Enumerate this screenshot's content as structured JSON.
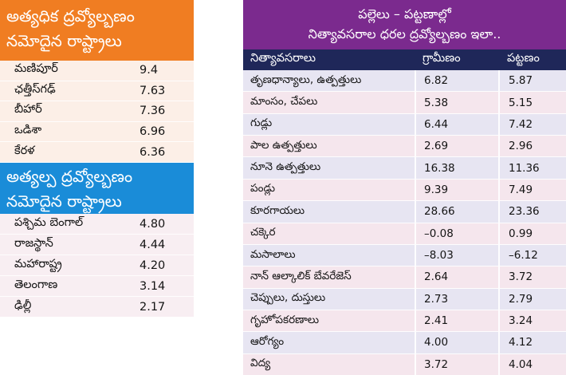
{
  "colors": {
    "high_header": "#f07d22",
    "low_header": "#1a8cd8",
    "compare_header": "#7b2a8e",
    "column_header": "#1f2759"
  },
  "chart_data": [
    {
      "type": "table",
      "title_lines": [
        "అత్యధిక ద్రవ్యోల్బణం",
        "నమోదైన రాష్ట్రాలు"
      ],
      "rows": [
        {
          "state": "మణిపూర్",
          "value": "9.4"
        },
        {
          "state": "ఛత్తీస్‌గఢ్",
          "value": "7.63"
        },
        {
          "state": "బీహార్",
          "value": "7.36"
        },
        {
          "state": "ఒడిశా",
          "value": "6.96"
        },
        {
          "state": "కేరళ",
          "value": "6.36"
        }
      ]
    },
    {
      "type": "table",
      "title_lines": [
        "అత్యల్ప ద్రవ్యోల్బణం",
        "నమోదైన రాష్ట్రాలు"
      ],
      "rows": [
        {
          "state": "పశ్చిమ బెంగాల్",
          "value": "4.80"
        },
        {
          "state": "రాజస్థాన్",
          "value": "4.44"
        },
        {
          "state": "మహారాష్ట్ర",
          "value": "4.20"
        },
        {
          "state": "తెలంగాణ",
          "value": "3.14"
        },
        {
          "state": "ఢిల్లీ",
          "value": "2.17"
        }
      ]
    },
    {
      "type": "table",
      "title_lines": [
        "పల్లెలు – పట్టణాల్లో",
        "నిత్యావసరాల ధరల ద్రవ్యోల్బణం ఇలా.."
      ],
      "columns": [
        "నిత్యావసరాలు",
        "గ్రామీణం",
        "పట్టణం"
      ],
      "rows": [
        {
          "item": "తృణధాన్యాలు, ఉత్పత్తులు",
          "rural": "6.82",
          "urban": "5.87"
        },
        {
          "item": "మాంసం, చేపలు",
          "rural": "5.38",
          "urban": "5.15"
        },
        {
          "item": "గుడ్లు",
          "rural": "6.44",
          "urban": "7.42"
        },
        {
          "item": "పాల ఉత్పత్తులు",
          "rural": "2.69",
          "urban": "2.96"
        },
        {
          "item": "నూనె ఉత్పత్తులు",
          "rural": "16.38",
          "urban": "11.36"
        },
        {
          "item": "పండ్లు",
          "rural": "9.39",
          "urban": "7.49"
        },
        {
          "item": "కూరగాయలు",
          "rural": "28.66",
          "urban": "23.36"
        },
        {
          "item": "చక్కెర",
          "rural": "–0.08",
          "urban": "0.99"
        },
        {
          "item": "మసాలాలు",
          "rural": "–8.03",
          "urban": "–6.12"
        },
        {
          "item": "నాన్ ఆల్కాలిక్ బేవరేజెస్",
          "rural": "2.64",
          "urban": "3.72"
        },
        {
          "item": "చెప్పులు, దుస్తులు",
          "rural": "2.73",
          "urban": "2.79"
        },
        {
          "item": "గృహోపకరణాలు",
          "rural": "2.41",
          "urban": "3.24"
        },
        {
          "item": "ఆరోగ్యం",
          "rural": "4.00",
          "urban": "4.12"
        },
        {
          "item": "విద్య",
          "rural": "3.72",
          "urban": "4.04"
        }
      ]
    }
  ]
}
